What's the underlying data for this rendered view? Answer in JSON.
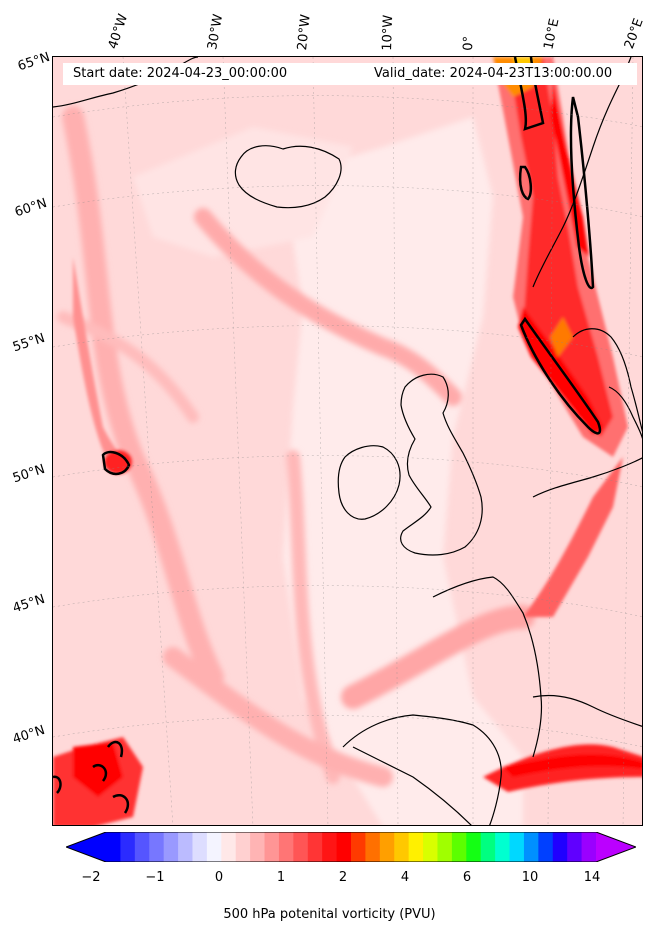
{
  "header": {
    "start_date": "Start date: 2024-04-23_00:00:00",
    "valid_date": "Valid_date: 2024-04-23T13:00:00.00"
  },
  "longitude_labels": [
    "40°W",
    "30°W",
    "20°W",
    "10°W",
    "0°",
    "10°E",
    "20°E"
  ],
  "latitude_labels": [
    "65°N",
    "60°N",
    "55°N",
    "50°N",
    "45°N",
    "40°N"
  ],
  "colorbar": {
    "ticks": [
      "−2",
      "−1",
      "0",
      "1",
      "2",
      "4",
      "6",
      "10",
      "14"
    ],
    "label": "500 hPa potenital vorticity (PVU)",
    "colors": [
      "#0000ff",
      "#2b2bff",
      "#5555ff",
      "#7777ff",
      "#9999ff",
      "#bbbbff",
      "#ddddff",
      "#f4f4ff",
      "#ffe8e8",
      "#ffd0d0",
      "#ffb4b4",
      "#ff9595",
      "#ff7575",
      "#ff5555",
      "#ff3535",
      "#ff1515",
      "#ff0000",
      "#ff3a00",
      "#ff7000",
      "#ff9f00",
      "#ffc800",
      "#fff000",
      "#d8ff00",
      "#a0ff00",
      "#5cff00",
      "#14ff14",
      "#00ff80",
      "#00ffd0",
      "#00d8ff",
      "#0090ff",
      "#0040ff",
      "#2000ff",
      "#6000ff",
      "#9a00ff"
    ],
    "under_color": "#0000ff",
    "over_color": "#bb00ff"
  },
  "map": {
    "background_color": "#ffd6d6",
    "contour_color": "#000000"
  }
}
